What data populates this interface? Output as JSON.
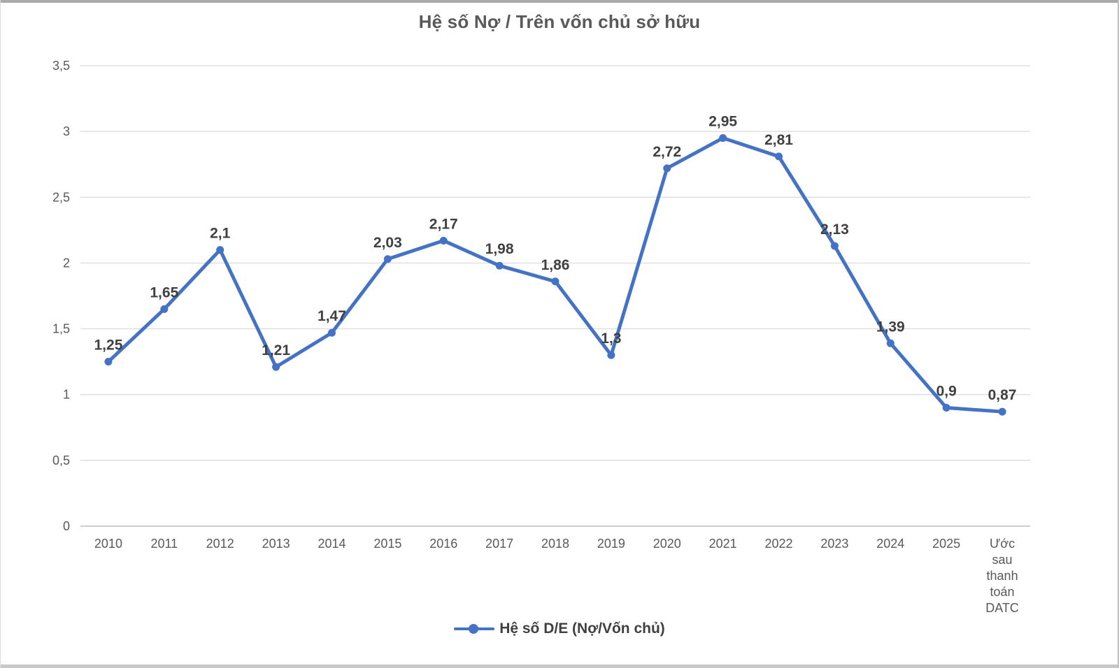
{
  "chart_data": {
    "type": "line",
    "title": "Hệ số Nợ / Trên vốn chủ sở hữu",
    "categories": [
      "2010",
      "2011",
      "2012",
      "2013",
      "2014",
      "2015",
      "2016",
      "2017",
      "2018",
      "2019",
      "2020",
      "2021",
      "2022",
      "2023",
      "2024",
      "2025",
      "Ước sau thanh toán DATC"
    ],
    "series": [
      {
        "name": "Hệ số D/E (Nợ/Vốn chủ)",
        "values": [
          1.25,
          1.65,
          2.1,
          1.21,
          1.47,
          2.03,
          2.17,
          1.98,
          1.86,
          1.3,
          2.72,
          2.95,
          2.81,
          2.13,
          1.39,
          0.9,
          0.87
        ],
        "point_labels": [
          "1,25",
          "1,65",
          "2,1",
          "1,21",
          "1,47",
          "2,03",
          "2,17",
          "1,98",
          "1,86",
          "1,3",
          "2,72",
          "2,95",
          "2,81",
          "2,13",
          "1,39",
          "0,9",
          "0,87"
        ],
        "color": "#4472C4"
      }
    ],
    "y_ticks": [
      {
        "value": 0,
        "label": "0"
      },
      {
        "value": 0.5,
        "label": "0,5"
      },
      {
        "value": 1,
        "label": "1"
      },
      {
        "value": 1.5,
        "label": "1,5"
      },
      {
        "value": 2,
        "label": "2"
      },
      {
        "value": 2.5,
        "label": "2,5"
      },
      {
        "value": 3,
        "label": "3"
      },
      {
        "value": 3.5,
        "label": "3,5"
      }
    ],
    "ylim": [
      0,
      3.5
    ],
    "xlabel": "",
    "ylabel": "",
    "grid": true,
    "legend_position": "bottom",
    "decimal_separator": ",",
    "colors": {
      "line": "#4472C4",
      "marker": "#4472C4",
      "gridline": "#d9d9d9",
      "axis_line": "#bfbfbf",
      "tick_text": "#595959",
      "data_label": "#404040",
      "title_text": "#595959"
    }
  }
}
